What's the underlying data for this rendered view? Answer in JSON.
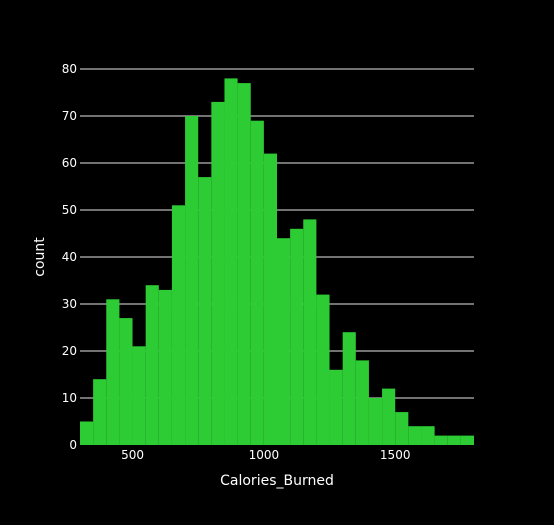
{
  "chart_data": {
    "type": "bar",
    "bar_color": "#2ecc34",
    "background": "#000000",
    "grid_color": "#ffffff",
    "text_color": "#ffffff",
    "xlabel": "Calories_Burned",
    "ylabel": "count",
    "bin_size": 50,
    "x_range": [
      300,
      1800
    ],
    "ylim": [
      0,
      80
    ],
    "grid": {
      "y": true,
      "x": false
    },
    "x_ticks": [
      500,
      1000,
      1500
    ],
    "x_tick_labels": [
      "500",
      "1000",
      "1500"
    ],
    "y_ticks": [
      0,
      10,
      20,
      30,
      40,
      50,
      60,
      70,
      80
    ],
    "y_tick_labels": [
      "0",
      "10",
      "20",
      "30",
      "40",
      "50",
      "60",
      "70",
      "80"
    ],
    "bins": [
      {
        "x0": 300,
        "x1": 350,
        "count": 5
      },
      {
        "x0": 350,
        "x1": 400,
        "count": 14
      },
      {
        "x0": 400,
        "x1": 450,
        "count": 31
      },
      {
        "x0": 450,
        "x1": 500,
        "count": 27
      },
      {
        "x0": 500,
        "x1": 550,
        "count": 21
      },
      {
        "x0": 550,
        "x1": 600,
        "count": 34
      },
      {
        "x0": 600,
        "x1": 650,
        "count": 33
      },
      {
        "x0": 650,
        "x1": 700,
        "count": 51
      },
      {
        "x0": 700,
        "x1": 750,
        "count": 70
      },
      {
        "x0": 750,
        "x1": 800,
        "count": 57
      },
      {
        "x0": 800,
        "x1": 850,
        "count": 73
      },
      {
        "x0": 850,
        "x1": 900,
        "count": 78
      },
      {
        "x0": 900,
        "x1": 950,
        "count": 77
      },
      {
        "x0": 950,
        "x1": 1000,
        "count": 69
      },
      {
        "x0": 1000,
        "x1": 1050,
        "count": 62
      },
      {
        "x0": 1050,
        "x1": 1100,
        "count": 44
      },
      {
        "x0": 1100,
        "x1": 1150,
        "count": 46
      },
      {
        "x0": 1150,
        "x1": 1200,
        "count": 48
      },
      {
        "x0": 1200,
        "x1": 1250,
        "count": 32
      },
      {
        "x0": 1250,
        "x1": 1300,
        "count": 16
      },
      {
        "x0": 1300,
        "x1": 1350,
        "count": 24
      },
      {
        "x0": 1350,
        "x1": 1400,
        "count": 18
      },
      {
        "x0": 1400,
        "x1": 1450,
        "count": 10
      },
      {
        "x0": 1450,
        "x1": 1500,
        "count": 12
      },
      {
        "x0": 1500,
        "x1": 1550,
        "count": 7
      },
      {
        "x0": 1550,
        "x1": 1600,
        "count": 4
      },
      {
        "x0": 1600,
        "x1": 1650,
        "count": 4
      },
      {
        "x0": 1650,
        "x1": 1700,
        "count": 2
      },
      {
        "x0": 1700,
        "x1": 1750,
        "count": 2
      },
      {
        "x0": 1750,
        "x1": 1800,
        "count": 2
      }
    ]
  }
}
